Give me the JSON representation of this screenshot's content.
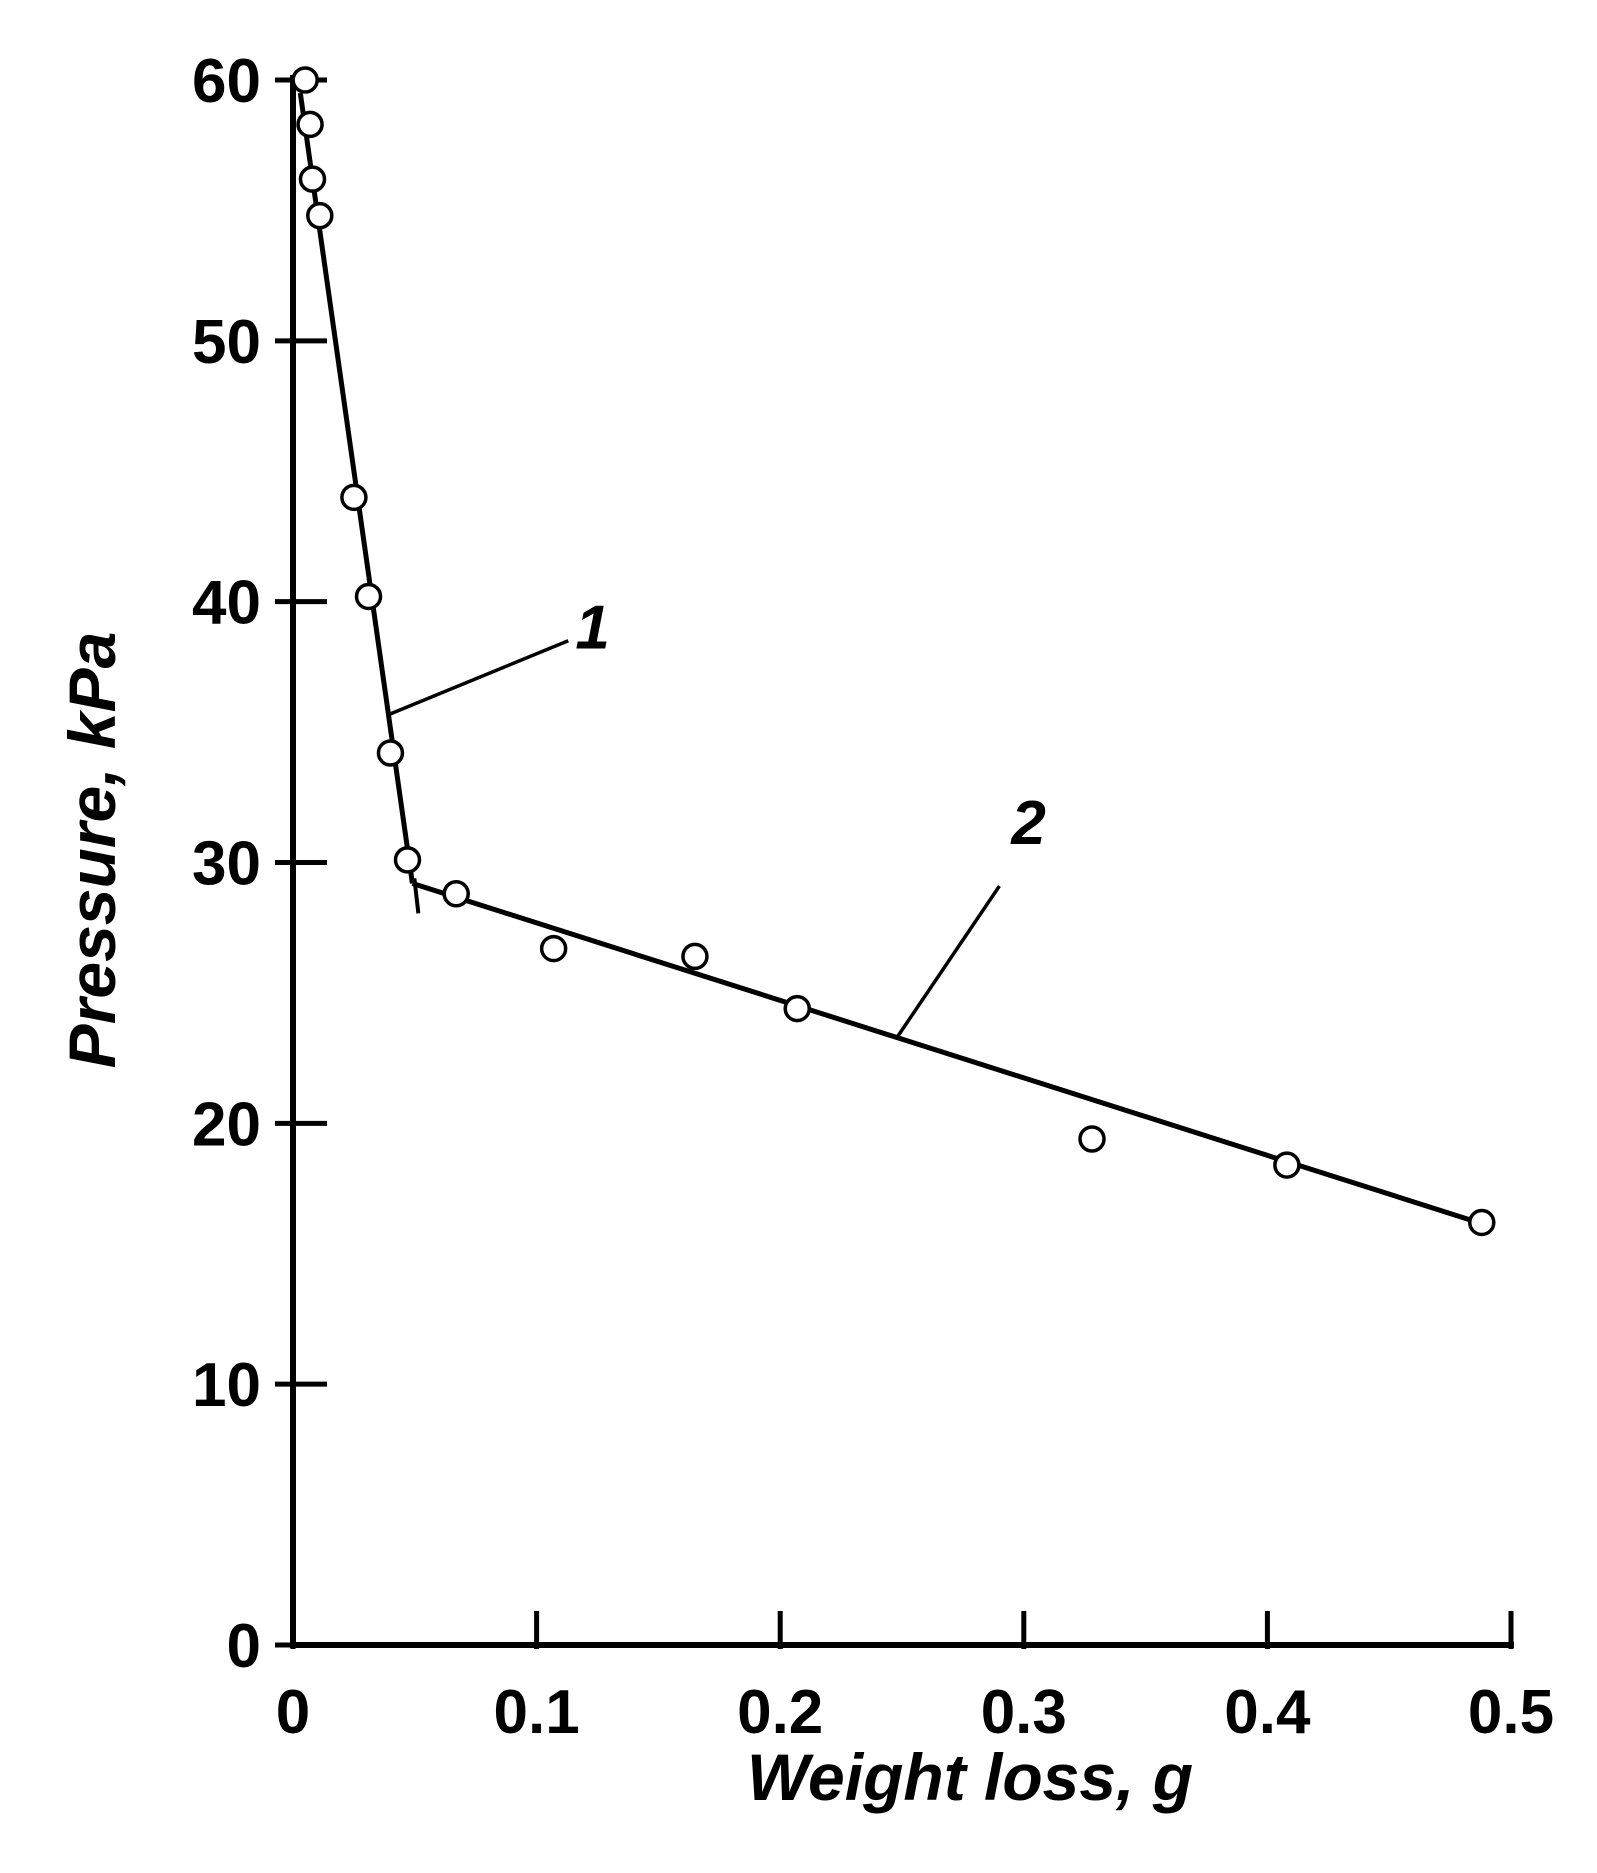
{
  "chart_data": {
    "type": "scatter",
    "xlabel": "Weight loss, g",
    "ylabel": "Pressure, kPa",
    "xlim": [
      0,
      0.5
    ],
    "ylim": [
      0,
      60
    ],
    "xticks": [
      0,
      0.1,
      0.2,
      0.3,
      0.4,
      0.5
    ],
    "xtick_labels": [
      "0",
      "0.1",
      "0.2",
      "0.3",
      "0.4",
      "0.5"
    ],
    "yticks": [
      0,
      10,
      20,
      30,
      40,
      50,
      60
    ],
    "ytick_labels": [
      "0",
      "10",
      "20",
      "30",
      "40",
      "50",
      "60"
    ],
    "grid": false,
    "series": [
      {
        "marker": "open-circle",
        "points": [
          {
            "x": 0.005,
            "y": 60.0
          },
          {
            "x": 0.007,
            "y": 58.3
          },
          {
            "x": 0.008,
            "y": 56.2
          },
          {
            "x": 0.011,
            "y": 54.8
          },
          {
            "x": 0.025,
            "y": 44.0
          },
          {
            "x": 0.031,
            "y": 40.2
          },
          {
            "x": 0.04,
            "y": 34.2
          },
          {
            "x": 0.047,
            "y": 30.1
          },
          {
            "x": 0.067,
            "y": 28.8
          },
          {
            "x": 0.107,
            "y": 26.7
          },
          {
            "x": 0.165,
            "y": 26.4
          },
          {
            "x": 0.207,
            "y": 24.4
          },
          {
            "x": 0.328,
            "y": 19.4
          },
          {
            "x": 0.408,
            "y": 18.4
          },
          {
            "x": 0.488,
            "y": 16.2
          }
        ]
      }
    ],
    "fit_lines": [
      {
        "label": "1",
        "points": [
          {
            "x": 0.003,
            "y": 59.5
          },
          {
            "x": 0.049,
            "y": 29.2
          }
        ]
      },
      {
        "label": "2",
        "points": [
          {
            "x": 0.049,
            "y": 29.2
          },
          {
            "x": 0.49,
            "y": 16.1
          }
        ]
      }
    ],
    "annotations": [
      {
        "text": "1",
        "points_to": {
          "x": 0.04,
          "y": 35.7
        }
      },
      {
        "text": "2",
        "points_to": {
          "x": 0.248,
          "y": 23.3
        }
      }
    ]
  }
}
